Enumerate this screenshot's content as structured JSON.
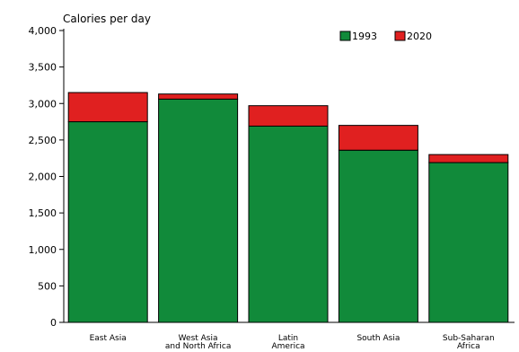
{
  "chart_data": {
    "type": "bar",
    "stacked": true,
    "title": "",
    "ylabel": "Calories per day",
    "xlabel": "",
    "ylim": [
      0,
      4000
    ],
    "yticks": [
      "0",
      "500",
      "1,000",
      "1,500",
      "2,000",
      "2,500",
      "3,000",
      "3,500",
      "4,000"
    ],
    "categories": [
      [
        "East Asia"
      ],
      [
        "West Asia",
        "and North Africa"
      ],
      [
        "Latin",
        "America"
      ],
      [
        "South Asia"
      ],
      [
        "Sub-Saharan",
        "Africa"
      ]
    ],
    "series": [
      {
        "name": "1993",
        "color": "#118a3a",
        "values": [
          2750,
          3060,
          2690,
          2360,
          2190
        ]
      },
      {
        "name": "2020",
        "color": "#e02020",
        "values": [
          400,
          70,
          280,
          340,
          110
        ]
      }
    ],
    "legend_position": "top-right",
    "grid": false
  }
}
